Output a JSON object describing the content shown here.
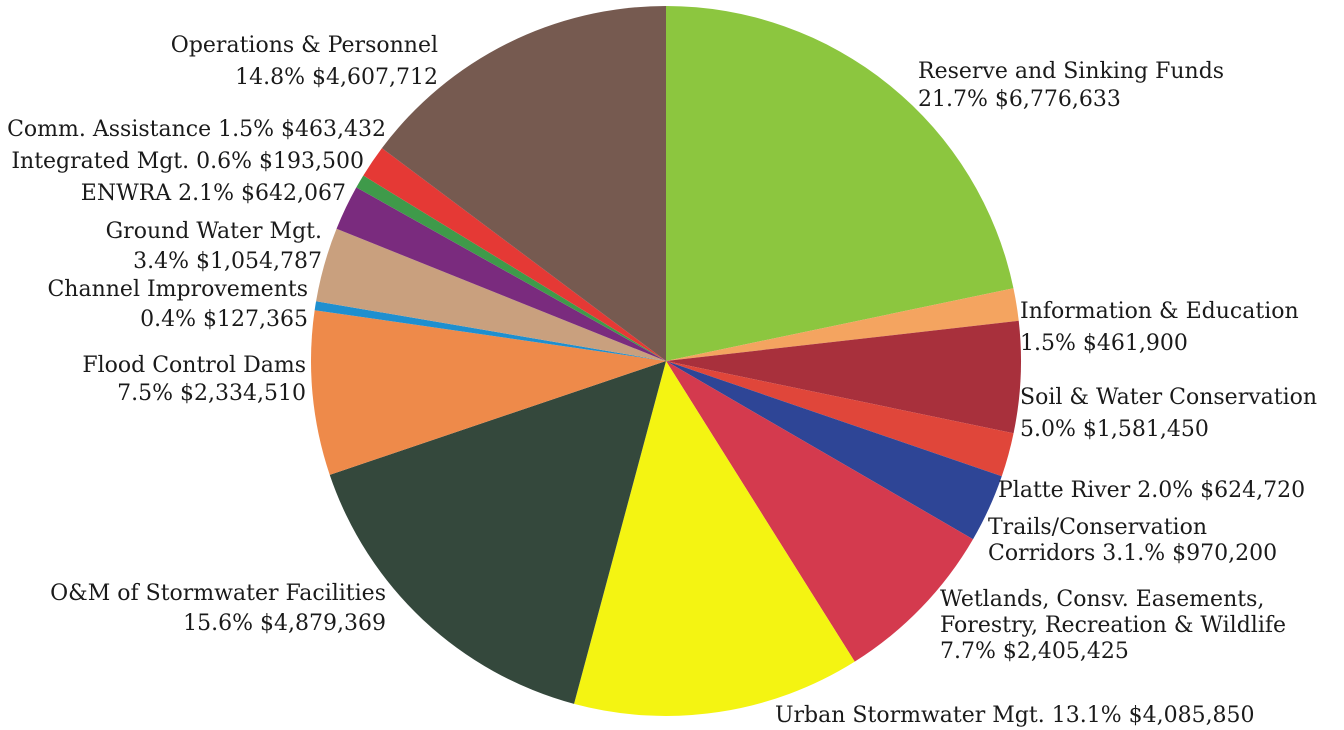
{
  "chart_data": {
    "type": "pie",
    "title": "",
    "start_angle_deg": 0,
    "direction": "clockwise",
    "slices": [
      {
        "name": "Reserve and Sinking Funds",
        "percent_label": "21.7%",
        "amount_label": "$6,776,633",
        "value": 6776633,
        "color": "#8cc63f"
      },
      {
        "name": "Information & Education",
        "percent_label": "1.5%",
        "amount_label": "$461,900",
        "value": 461900,
        "color": "#f4a460"
      },
      {
        "name": "Soil & Water Conservation",
        "percent_label": "5.0%",
        "amount_label": "$1,581,450",
        "value": 1581450,
        "color": "#a8303c"
      },
      {
        "name": "Platte River",
        "percent_label": "2.0%",
        "amount_label": "$624,720",
        "value": 624720,
        "color": "#e0463a"
      },
      {
        "name": "Trails/Conservation Corridors",
        "percent_label": "3.1%",
        "amount_label": "$970,200",
        "value": 970200,
        "color": "#2e4596"
      },
      {
        "name": "Wetlands, Consv. Easements, Forestry, Recreation & Wildlife",
        "percent_label": "7.7%",
        "amount_label": "$2,405,425",
        "value": 2405425,
        "color": "#d43a4e"
      },
      {
        "name": "Urban Stormwater Mgt.",
        "percent_label": "13.1%",
        "amount_label": "$4,085,850",
        "value": 4085850,
        "color": "#f4f412"
      },
      {
        "name": "O&M of Stormwater Facilities",
        "percent_label": "15.6%",
        "amount_label": "$4,879,369",
        "value": 4879369,
        "color": "#34483c"
      },
      {
        "name": "Flood Control Dams",
        "percent_label": "7.5%",
        "amount_label": "$2,334,510",
        "value": 2334510,
        "color": "#ee8a4a"
      },
      {
        "name": "Channel Improvements",
        "percent_label": "0.4%",
        "amount_label": "$127,365",
        "value": 127365,
        "color": "#1e8fcf"
      },
      {
        "name": "Ground Water Mgt.",
        "percent_label": "3.4%",
        "amount_label": "$1,054,787",
        "value": 1054787,
        "color": "#c9a07e"
      },
      {
        "name": "ENWRA",
        "percent_label": "2.1%",
        "amount_label": "$642,067",
        "value": 642067,
        "color": "#7a2b7e"
      },
      {
        "name": "Integrated Mgt.",
        "percent_label": "0.6%",
        "amount_label": "$193,500",
        "value": 193500,
        "color": "#3f9a4a"
      },
      {
        "name": "Comm. Assistance",
        "percent_label": "1.5%",
        "amount_label": "$463,432",
        "value": 463432,
        "color": "#e53935"
      },
      {
        "name": "Operations & Personnel",
        "percent_label": "14.8%",
        "amount_label": "$4,607,712",
        "value": 4607712,
        "color": "#765a50"
      }
    ]
  },
  "labels": {
    "reserve": {
      "l1": "Reserve and Sinking Funds",
      "l2": "21.7% $6,776,633"
    },
    "info": {
      "l1": "Information & Education",
      "l2": "1.5% $461,900"
    },
    "soil": {
      "l1": "Soil & Water Conservation",
      "l2": "5.0% $1,581,450"
    },
    "platte": {
      "l1": "Platte River 2.0% $624,720"
    },
    "trails": {
      "l1": "Trails/Conservation",
      "l2": "Corridors 3.1.% $970,200"
    },
    "wetlands": {
      "l1": "Wetlands, Consv. Easements,",
      "l2": "Forestry, Recreation & Wildlife",
      "l3": "7.7% $2,405,425"
    },
    "urban": {
      "l1": "Urban Stormwater Mgt. 13.1% $4,085,850"
    },
    "om": {
      "l1": "O&M of Stormwater Facilities",
      "l2": "15.6% $4,879,369"
    },
    "flood": {
      "l1": "Flood Control Dams",
      "l2": "7.5% $2,334,510"
    },
    "channel": {
      "l1": "Channel Improvements",
      "l2": "0.4% $127,365"
    },
    "ground": {
      "l1": "Ground Water Mgt.",
      "l2": "3.4% $1,054,787"
    },
    "enwra": {
      "l1": "ENWRA 2.1% $642,067"
    },
    "integrated": {
      "l1": "Integrated Mgt. 0.6% $193,500"
    },
    "comm": {
      "l1": "Comm. Assistance 1.5% $463,432"
    },
    "ops": {
      "l1": "Operations & Personnel",
      "l2": "14.8% $4,607,712"
    }
  }
}
